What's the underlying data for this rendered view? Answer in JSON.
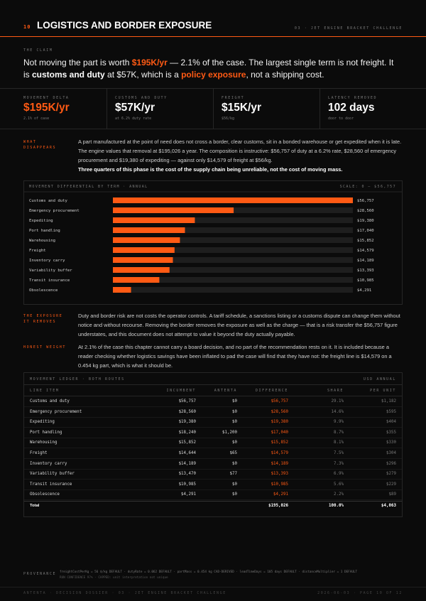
{
  "header": {
    "number": "10",
    "title": "LOGISTICS AND BORDER EXPOSURE",
    "context": "03 · JET ENGINE BRACKET CHALLENGE"
  },
  "claim": {
    "label": "THE CLAIM",
    "segments": [
      {
        "text": "Not moving the part is worth ",
        "em": "none"
      },
      {
        "text": "$195K/yr",
        "em": "accent"
      },
      {
        "text": " — 2.1% of the case. The largest single term is not freight. It is ",
        "em": "none"
      },
      {
        "text": "customs and duty",
        "em": "bold"
      },
      {
        "text": " at $57K, which is a ",
        "em": "none"
      },
      {
        "text": "policy exposure",
        "em": "accent"
      },
      {
        "text": ", not a shipping cost.",
        "em": "none"
      }
    ]
  },
  "kpis": [
    {
      "label": "MOVEMENT DELTA",
      "value": "$195K/yr",
      "note": "2.1% of case",
      "accent": true
    },
    {
      "label": "CUSTOMS AND DUTY",
      "value": "$57K/yr",
      "note": "at 6.2% duty rate",
      "accent": false
    },
    {
      "label": "FREIGHT",
      "value": "$15K/yr",
      "note": "$56/kg",
      "accent": false
    },
    {
      "label": "LATENCY REMOVED",
      "value": "102 days",
      "note": "door to door",
      "accent": false
    }
  ],
  "sections": [
    {
      "label": "WHAT DISAPPEARS",
      "text": "A part manufactured at the point of need does not cross a border, clear customs, sit in a bonded warehouse or get expedited when it is late. The engine values that removal at $195,026 a year. The composition is instructive: $56,757 of duty at a 6.2% rate, $28,560 of emergency procurement and $19,380 of expediting — against only $14,579 of freight at $56/kg.",
      "strong": "Three quarters of this phase is the cost of the supply chain being unreliable, not the cost of moving mass."
    },
    {
      "label": "THE EXPOSURE IT REMOVES",
      "text": "Duty and border risk are not costs the operator controls. A tariff schedule, a sanctions listing or a customs dispute can change them without notice and without recourse. Removing the border removes the exposure as well as the charge — that is a risk transfer the $56,757 figure understates, and this document does not attempt to value it beyond the duty actually payable."
    },
    {
      "label": "HONEST WEIGHT",
      "text": "At 2.1% of the case this chapter cannot carry a board decision, and no part of the recommendation rests on it. It is included because a reader checking whether logistics savings have been inflated to pad the case will find that they have not: the freight line is $14,579 on a 0.454 kg part, which is what it should be."
    }
  ],
  "chart_data": {
    "type": "bar",
    "orientation": "horizontal",
    "title": "MOVEMENT DIFFERENTIAL BY TERM · ANNUAL",
    "scale_label": "SCALE: 0 — $56,757",
    "categories": [
      "Customs and duty",
      "Emergency procurement",
      "Expediting",
      "Port handling",
      "Warehousing",
      "Freight",
      "Inventory carry",
      "Variability buffer",
      "Transit insurance",
      "Obsolescence"
    ],
    "values": [
      56757,
      28560,
      19380,
      17040,
      15852,
      14579,
      14189,
      13393,
      10985,
      4291
    ],
    "value_labels": [
      "$56,757",
      "$28,560",
      "$19,380",
      "$17,040",
      "$15,852",
      "$14,579",
      "$14,189",
      "$13,393",
      "$10,985",
      "$4,291"
    ],
    "xlim": [
      0,
      56757
    ],
    "color": "#ff5a14",
    "track_color": "#1e1e1e"
  },
  "table": {
    "title": "MOVEMENT LEDGER · BOTH ROUTES",
    "unit": "USD ANNUAL",
    "columns": [
      "LINE ITEM",
      "INCUMBENT",
      "ANTENTA",
      "DIFFERENCE",
      "SHARE",
      "PER UNIT"
    ],
    "rows": [
      [
        "Customs and duty",
        "$56,757",
        "$0",
        "$56,757",
        "29.1%",
        "$1,182"
      ],
      [
        "Emergency procurement",
        "$28,560",
        "$0",
        "$28,560",
        "14.6%",
        "$595"
      ],
      [
        "Expediting",
        "$19,380",
        "$0",
        "$19,380",
        "9.9%",
        "$404"
      ],
      [
        "Port handling",
        "$18,240",
        "$1,200",
        "$17,040",
        "8.7%",
        "$355"
      ],
      [
        "Warehousing",
        "$15,852",
        "$0",
        "$15,852",
        "8.1%",
        "$330"
      ],
      [
        "Freight",
        "$14,644",
        "$65",
        "$14,579",
        "7.5%",
        "$304"
      ],
      [
        "Inventory carry",
        "$14,189",
        "$0",
        "$14,189",
        "7.3%",
        "$296"
      ],
      [
        "Variability buffer",
        "$13,470",
        "$77",
        "$13,393",
        "6.9%",
        "$279"
      ],
      [
        "Transit insurance",
        "$10,985",
        "$0",
        "$10,985",
        "5.6%",
        "$229"
      ],
      [
        "Obsolescence",
        "$4,291",
        "$0",
        "$4,291",
        "2.2%",
        "$89"
      ]
    ],
    "total": [
      "Total",
      "",
      "",
      "$195,026",
      "100.0%",
      "$4,063"
    ]
  },
  "provenance": {
    "label": "PROVENANCE",
    "line1": "freightCostPerKg = 56 $/kg DEFAULT · dutyRate = 0.062 DEFAULT · partMass = 0.454 kg CAD-DERIVED · leadTimeDays = 105 days DEFAULT · distanceMultiplier = 1 DEFAULT",
    "line2": "RUN CONFIDENCE 97% · CAPPED: unit interpretation not unique"
  },
  "footer": {
    "left": "ANTENTA · DECISION DOSSIER · 03 · JET ENGINE BRACKET CHALLENGE",
    "right": "2026-06-03 · PAGE 10 OF 12"
  }
}
